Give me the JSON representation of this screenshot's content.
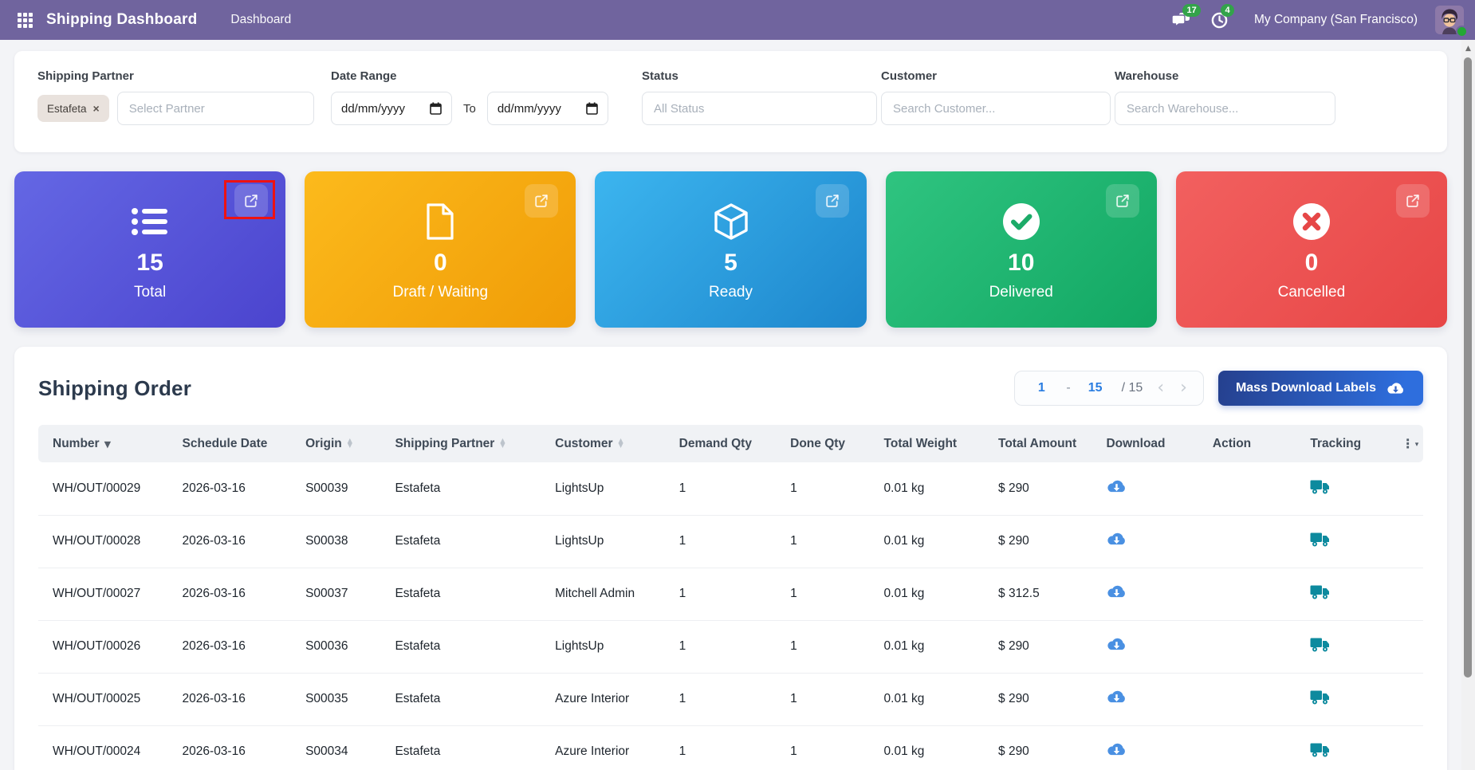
{
  "navbar": {
    "bg_color": "#70649e",
    "title": "Shipping Dashboard",
    "menu_dashboard": "Dashboard",
    "messages_count": "17",
    "activities_count": "4",
    "badge_color": "#33a34a",
    "company": "My Company (San Francisco)"
  },
  "filters": {
    "shipping_partner": {
      "label": "Shipping Partner",
      "tag": "Estafeta",
      "tag_close": "×",
      "placeholder": "Select Partner"
    },
    "date_range": {
      "label": "Date Range",
      "from_value": "dd/mm/yyyy",
      "separator": "To",
      "to_value": "dd/mm/yyyy"
    },
    "status": {
      "label": "Status",
      "placeholder": "All Status"
    },
    "customer": {
      "label": "Customer",
      "placeholder": "Search Customer..."
    },
    "warehouse": {
      "label": "Warehouse",
      "placeholder": "Search Warehouse..."
    }
  },
  "stat_cards": [
    {
      "id": "total",
      "icon": "list-icon",
      "value": "15",
      "label": "Total",
      "gradient": [
        "#6467e4",
        "#4b44ce"
      ]
    },
    {
      "id": "draft",
      "icon": "file-icon",
      "value": "0",
      "label": "Draft / Waiting",
      "gradient": [
        "#fcba1c",
        "#f09c07"
      ]
    },
    {
      "id": "ready",
      "icon": "cube-icon",
      "value": "5",
      "label": "Ready",
      "gradient": [
        "#3cb5ef",
        "#1d86cc"
      ]
    },
    {
      "id": "delivered",
      "icon": "check-circle-icon",
      "value": "10",
      "label": "Delivered",
      "gradient": [
        "#2fc480",
        "#12a763"
      ]
    },
    {
      "id": "cancelled",
      "icon": "x-circle-icon",
      "value": "0",
      "label": "Cancelled",
      "gradient": [
        "#f2605f",
        "#e74646"
      ]
    }
  ],
  "annotation": {
    "color": "#ee1212",
    "target": "total-card-external-link"
  },
  "orders": {
    "title": "Shipping Order",
    "pagination": {
      "start": "1",
      "dash": "-",
      "end": "15",
      "total": "/ 15",
      "prev": "‹",
      "next": "›"
    },
    "mass_download_label": "Mass Download Labels",
    "columns": [
      {
        "label": "Number",
        "sort": "desc"
      },
      {
        "label": "Schedule Date",
        "sort": null
      },
      {
        "label": "Origin",
        "sort": "both"
      },
      {
        "label": "Shipping Partner",
        "sort": "both"
      },
      {
        "label": "Customer",
        "sort": "both"
      },
      {
        "label": "Demand Qty",
        "sort": null
      },
      {
        "label": "Done Qty",
        "sort": null
      },
      {
        "label": "Total Weight",
        "sort": null
      },
      {
        "label": "Total Amount",
        "sort": null
      },
      {
        "label": "Download",
        "sort": null
      },
      {
        "label": "Action",
        "sort": null
      },
      {
        "label": "Tracking",
        "sort": null
      },
      {
        "label": "",
        "sort": null,
        "icon": "column-options-icon"
      }
    ],
    "rows": [
      {
        "number": "WH/OUT/00029",
        "schedule_date": "2026-03-16",
        "origin": "S00039",
        "partner": "Estafeta",
        "customer": "LightsUp",
        "demand_qty": "1",
        "done_qty": "1",
        "total_weight": "0.01 kg",
        "total_amount": "$ 290"
      },
      {
        "number": "WH/OUT/00028",
        "schedule_date": "2026-03-16",
        "origin": "S00038",
        "partner": "Estafeta",
        "customer": "LightsUp",
        "demand_qty": "1",
        "done_qty": "1",
        "total_weight": "0.01 kg",
        "total_amount": "$ 290"
      },
      {
        "number": "WH/OUT/00027",
        "schedule_date": "2026-03-16",
        "origin": "S00037",
        "partner": "Estafeta",
        "customer": "Mitchell Admin",
        "demand_qty": "1",
        "done_qty": "1",
        "total_weight": "0.01 kg",
        "total_amount": "$ 312.5"
      },
      {
        "number": "WH/OUT/00026",
        "schedule_date": "2026-03-16",
        "origin": "S00036",
        "partner": "Estafeta",
        "customer": "LightsUp",
        "demand_qty": "1",
        "done_qty": "1",
        "total_weight": "0.01 kg",
        "total_amount": "$ 290"
      },
      {
        "number": "WH/OUT/00025",
        "schedule_date": "2026-03-16",
        "origin": "S00035",
        "partner": "Estafeta",
        "customer": "Azure Interior",
        "demand_qty": "1",
        "done_qty": "1",
        "total_weight": "0.01 kg",
        "total_amount": "$ 290"
      },
      {
        "number": "WH/OUT/00024",
        "schedule_date": "2026-03-16",
        "origin": "S00034",
        "partner": "Estafeta",
        "customer": "Azure Interior",
        "demand_qty": "1",
        "done_qty": "1",
        "total_weight": "0.01 kg",
        "total_amount": "$ 290"
      }
    ],
    "colors": {
      "link": "#7b6fae",
      "download_icon": "#4a90e2",
      "truck_icon": "#0d8a9e",
      "pagination_accent": "#2a7de1"
    }
  }
}
